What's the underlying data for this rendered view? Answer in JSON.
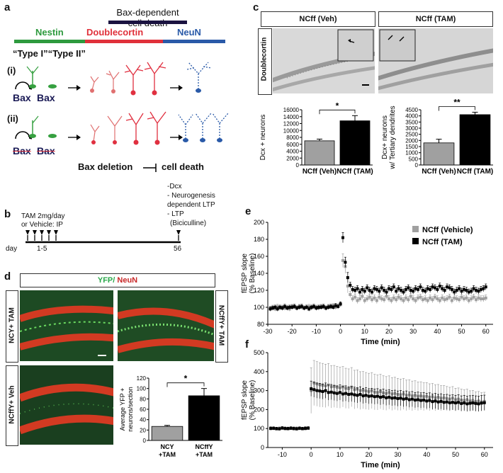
{
  "panel_a": {
    "label": "a",
    "title": "Bax-dependent cell death",
    "stage_labels": [
      "Nestin",
      "Doublecortin",
      "NeuN"
    ],
    "stage_colors": [
      "#2e9a3e",
      "#e0303a",
      "#2a5aa8"
    ],
    "type_text": "“Type I”“Type II”",
    "row_labels": [
      "(i)",
      "(ii)"
    ],
    "bax_label": "Bax",
    "bax_deletion": "Bax deletion",
    "cell_death": "cell death"
  },
  "panel_b": {
    "label": "b",
    "tam_text_1": "TAM 2mg/day",
    "tam_text_2": "or Vehicle: IP",
    "day_label": "day",
    "day_range": "1-5",
    "day_end": "56",
    "assays": [
      "-Dcx",
      "- Neurogenesis",
      "dependent LTP",
      "- LTP",
      "(Biciculline)"
    ]
  },
  "panel_c": {
    "label": "c",
    "image_titles": [
      "NCff (Veh)",
      "NCff (TAM)"
    ],
    "side_label": "Doublecortin"
  },
  "panel_d": {
    "label": "d",
    "header_yfp": "YFP/",
    "header_neun": " NeuN",
    "side_labels": [
      "NCY+ TAM",
      "NCffY+ TAM",
      "NCffY+ Veh"
    ]
  },
  "panel_e": {
    "label": "e"
  },
  "panel_f": {
    "label": "f"
  },
  "chart_data": [
    {
      "type": "bar",
      "id": "c-left",
      "categories": [
        "NCff (Veh)",
        "NCff (TAM)"
      ],
      "values": [
        7000,
        12800
      ],
      "errors": [
        500,
        1500
      ],
      "colors": [
        "#a0a0a0",
        "#000000"
      ],
      "ylabel": "Dcx + neurons",
      "ylim": [
        0,
        16000
      ],
      "yticks": [
        0,
        2000,
        4000,
        6000,
        8000,
        10000,
        12000,
        14000,
        16000
      ],
      "significance": "*"
    },
    {
      "type": "bar",
      "id": "c-right",
      "categories": [
        "NCff (Veh)",
        "NCff (TAM)"
      ],
      "values": [
        1800,
        4100
      ],
      "errors": [
        300,
        200
      ],
      "colors": [
        "#a0a0a0",
        "#000000"
      ],
      "ylabel": "Dcx+ neurons w/ Tertiary dendrites",
      "ylim": [
        0,
        4500
      ],
      "yticks": [
        0,
        500,
        1000,
        1500,
        2000,
        2500,
        3000,
        3500,
        4000,
        4500
      ],
      "significance": "**"
    },
    {
      "type": "bar",
      "id": "d",
      "categories": [
        "NCY +TAM",
        "NCffY +TAM"
      ],
      "values": [
        27,
        86
      ],
      "errors": [
        2,
        14
      ],
      "colors": [
        "#a0a0a0",
        "#000000"
      ],
      "ylabel": "Average YFP + neurons/section",
      "ylim": [
        0,
        120
      ],
      "yticks": [
        0,
        20,
        40,
        60,
        80,
        100,
        120
      ],
      "significance": "*"
    },
    {
      "type": "scatter",
      "id": "e",
      "xlabel": "Time (min)",
      "ylabel": "fEPSP slope (% Baseline)",
      "xlim": [
        -30,
        63
      ],
      "ylim": [
        80,
        200
      ],
      "xticks": [
        -30,
        -20,
        -10,
        0,
        10,
        20,
        30,
        40,
        50,
        60
      ],
      "yticks": [
        80,
        100,
        120,
        140,
        160,
        180,
        200
      ],
      "legend_position": "top-right",
      "series": [
        {
          "name": "NCff (Vehicle)",
          "color": "#a0a0a0",
          "x": [
            -29,
            -28,
            -27,
            -26,
            -25,
            -24,
            -23,
            -22,
            -21,
            -20,
            -19,
            -18,
            -17,
            -16,
            -15,
            -14,
            -13,
            -12,
            -11,
            -10,
            -9,
            -8,
            -7,
            -6,
            -5,
            -4,
            -3,
            -2,
            -1,
            0,
            1,
            2,
            3,
            4,
            5,
            6,
            7,
            8,
            9,
            10,
            11,
            12,
            13,
            14,
            15,
            16,
            17,
            18,
            19,
            20,
            21,
            22,
            23,
            24,
            25,
            26,
            27,
            28,
            29,
            30,
            31,
            32,
            33,
            34,
            35,
            36,
            37,
            38,
            39,
            40,
            41,
            42,
            43,
            44,
            45,
            46,
            47,
            48,
            49,
            50,
            51,
            52,
            53,
            54,
            55,
            56,
            57,
            58,
            59,
            60
          ],
          "y": [
            99,
            100,
            98,
            101,
            99,
            100,
            99,
            100,
            98,
            101,
            100,
            99,
            101,
            100,
            99,
            100,
            101,
            99,
            100,
            100,
            99,
            101,
            100,
            99,
            101,
            100,
            102,
            100,
            101,
            103,
            155,
            148,
            125,
            115,
            110,
            112,
            108,
            110,
            113,
            108,
            110,
            112,
            109,
            111,
            108,
            112,
            110,
            109,
            113,
            110,
            108,
            111,
            109,
            112,
            110,
            108,
            111,
            109,
            113,
            110,
            108,
            111,
            112,
            109,
            110,
            108,
            111,
            109,
            112,
            110,
            108,
            111,
            109,
            110,
            112,
            108,
            111,
            110,
            109,
            112,
            110,
            111,
            108,
            110,
            112,
            109,
            111,
            110,
            110,
            111
          ]
        },
        {
          "name": "NCff (TAM)",
          "color": "#000000",
          "x": [
            -29,
            -28,
            -27,
            -26,
            -25,
            -24,
            -23,
            -22,
            -21,
            -20,
            -19,
            -18,
            -17,
            -16,
            -15,
            -14,
            -13,
            -12,
            -11,
            -10,
            -9,
            -8,
            -7,
            -6,
            -5,
            -4,
            -3,
            -2,
            -1,
            0,
            1,
            2,
            3,
            4,
            5,
            6,
            7,
            8,
            9,
            10,
            11,
            12,
            13,
            14,
            15,
            16,
            17,
            18,
            19,
            20,
            21,
            22,
            23,
            24,
            25,
            26,
            27,
            28,
            29,
            30,
            31,
            32,
            33,
            34,
            35,
            36,
            37,
            38,
            39,
            40,
            41,
            42,
            43,
            44,
            45,
            46,
            47,
            48,
            49,
            50,
            51,
            52,
            53,
            54,
            55,
            56,
            57,
            58,
            59,
            60
          ],
          "y": [
            98,
            99,
            100,
            98,
            100,
            99,
            101,
            99,
            100,
            100,
            101,
            99,
            100,
            101,
            99,
            100,
            98,
            100,
            101,
            99,
            100,
            100,
            101,
            99,
            100,
            101,
            100,
            102,
            101,
            104,
            182,
            153,
            135,
            126,
            121,
            120,
            122,
            118,
            121,
            119,
            123,
            120,
            118,
            122,
            121,
            119,
            123,
            120,
            118,
            122,
            121,
            124,
            119,
            122,
            120,
            118,
            121,
            123,
            120,
            119,
            122,
            121,
            124,
            120,
            119,
            122,
            121,
            124,
            123,
            121,
            125,
            122,
            120,
            124,
            123,
            121,
            118,
            120,
            122,
            119,
            121,
            120,
            118,
            119,
            122,
            120,
            119,
            121,
            122,
            124
          ]
        }
      ]
    },
    {
      "type": "scatter",
      "id": "f",
      "xlabel": "Time (min)",
      "ylabel": "fEPSP slope (% Baseline)",
      "xlim": [
        -15,
        63
      ],
      "ylim": [
        0,
        500
      ],
      "xticks": [
        -10,
        0,
        10,
        20,
        30,
        40,
        50,
        60
      ],
      "yticks": [
        0,
        100,
        200,
        300,
        400,
        500
      ],
      "series": [
        {
          "name": "",
          "color": "#a0a0a0",
          "x": [
            -14,
            -13,
            -12,
            -11,
            -10,
            -9,
            -8,
            -7,
            -6,
            -5,
            -4,
            -3,
            -2,
            -1,
            0,
            1,
            2,
            3,
            4,
            5,
            6,
            7,
            8,
            9,
            10,
            11,
            12,
            13,
            14,
            15,
            16,
            17,
            18,
            19,
            20,
            21,
            22,
            23,
            24,
            25,
            26,
            27,
            28,
            29,
            30,
            31,
            32,
            33,
            34,
            35,
            36,
            37,
            38,
            39,
            40,
            41,
            42,
            43,
            44,
            45,
            46,
            47,
            48,
            49,
            50,
            51,
            52,
            53,
            54,
            55,
            56,
            57,
            58,
            59,
            60
          ],
          "y": [
            102,
            100,
            98,
            101,
            103,
            99,
            100,
            102,
            98,
            101,
            100,
            99,
            103,
            101,
            300,
            340,
            335,
            330,
            328,
            325,
            330,
            320,
            322,
            318,
            315,
            320,
            312,
            310,
            318,
            305,
            308,
            300,
            302,
            298,
            295,
            300,
            292,
            290,
            295,
            288,
            285,
            290,
            282,
            285,
            280,
            278,
            282,
            275,
            278,
            272,
            275,
            270,
            272,
            268,
            270,
            265,
            268,
            262,
            265,
            260,
            262,
            258,
            255,
            260,
            252,
            255,
            250,
            248,
            252,
            245,
            248,
            242,
            245,
            240,
            243
          ]
        },
        {
          "name": "",
          "color": "#000000",
          "x": [
            -14,
            -13,
            -12,
            -11,
            -10,
            -9,
            -8,
            -7,
            -6,
            -5,
            -4,
            -3,
            -2,
            -1,
            0,
            1,
            2,
            3,
            4,
            5,
            6,
            7,
            8,
            9,
            10,
            11,
            12,
            13,
            14,
            15,
            16,
            17,
            18,
            19,
            20,
            21,
            22,
            23,
            24,
            25,
            26,
            27,
            28,
            29,
            30,
            31,
            32,
            33,
            34,
            35,
            36,
            37,
            38,
            39,
            40,
            41,
            42,
            43,
            44,
            45,
            46,
            47,
            48,
            49,
            50,
            51,
            52,
            53,
            54,
            55,
            56,
            57,
            58,
            59,
            60
          ],
          "y": [
            100,
            101,
            99,
            98,
            102,
            100,
            99,
            101,
            100,
            98,
            101,
            99,
            100,
            102,
            310,
            305,
            300,
            298,
            295,
            300,
            290,
            292,
            288,
            285,
            290,
            282,
            285,
            280,
            282,
            278,
            275,
            280,
            272,
            275,
            270,
            272,
            268,
            270,
            265,
            268,
            262,
            265,
            260,
            262,
            258,
            260,
            255,
            258,
            252,
            255,
            250,
            252,
            248,
            250,
            245,
            248,
            242,
            245,
            240,
            243,
            238,
            240,
            236,
            238,
            235,
            238,
            232,
            235,
            230,
            233,
            235,
            232,
            230,
            234,
            236
          ]
        }
      ]
    }
  ]
}
